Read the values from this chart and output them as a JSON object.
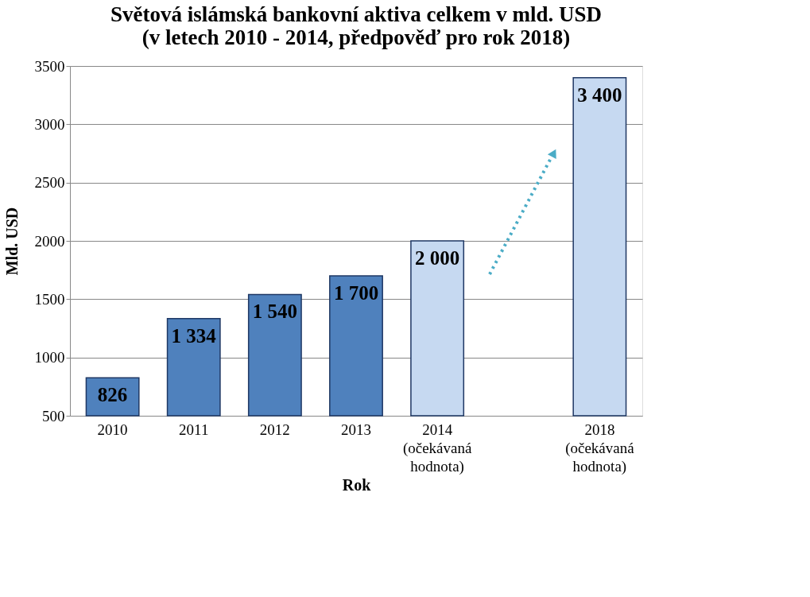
{
  "chart_data": {
    "type": "bar",
    "title": "Světová islámská bankovní aktiva celkem v mld. USD\n(v letech 2010 - 2014, předpověď pro rok 2018)",
    "xlabel": "Rok",
    "ylabel": "Mld. USD",
    "categories": [
      "2010",
      "2011",
      "2012",
      "2013",
      "2014\n(očekávaná\nhodnota)",
      null,
      "2018\n(očekávaná\nhodnota)"
    ],
    "values": [
      826,
      1334,
      1540,
      1700,
      2000,
      null,
      3400
    ],
    "colors": [
      "#4f81bd",
      "#4f81bd",
      "#4f81bd",
      "#4f81bd",
      "#c6d9f1",
      "#c6d9f1",
      "#c6d9f1"
    ],
    "value_labels": [
      "826",
      "1 334",
      "1 540",
      "1 700",
      "2 000",
      null,
      "3 400"
    ],
    "ylim": [
      500,
      3500
    ],
    "yticks": [
      500,
      1000,
      1500,
      2000,
      2500,
      3000,
      3500
    ],
    "grid": "y"
  }
}
